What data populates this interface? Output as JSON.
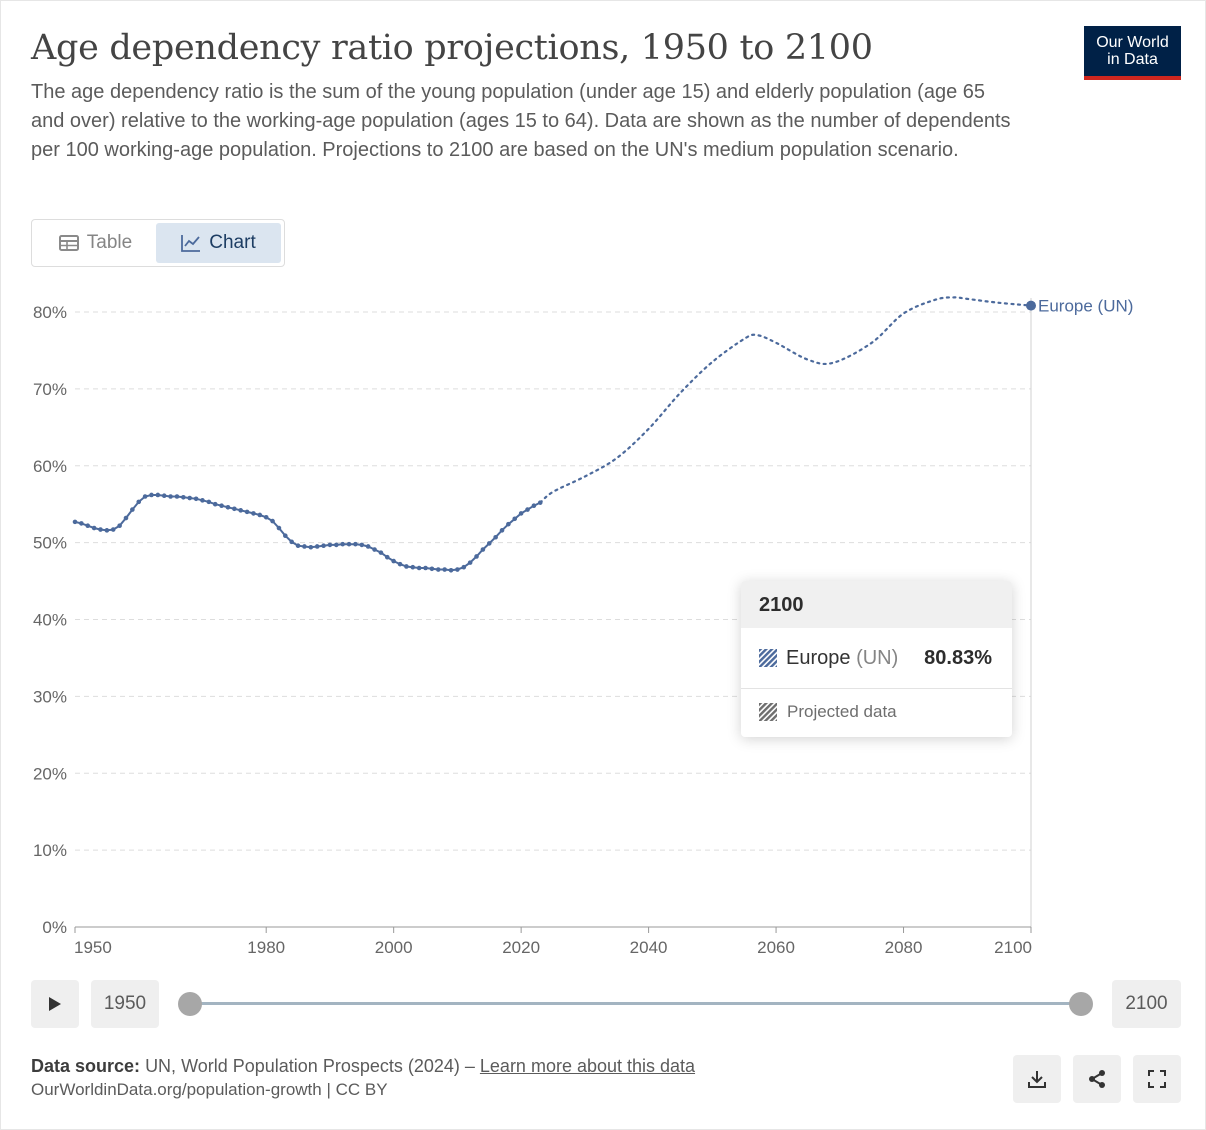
{
  "title": "Age dependency ratio projections, 1950 to 2100",
  "subtitle": "The age dependency ratio is the sum of the young population (under age 15) and elderly population (age 65 and over) relative to the working-age population (ages 15 to 64). Data are shown as the number of dependents per 100 working-age population. Projections to 2100 are based on the UN's medium population scenario.",
  "logo": {
    "line1": "Our World",
    "line2": "in Data"
  },
  "tabs": {
    "table": "Table",
    "chart": "Chart"
  },
  "tooltip": {
    "year": "2100",
    "entity": "Europe",
    "entity_suffix": "(UN)",
    "value": "80.83%",
    "footer": "Projected data"
  },
  "timeline": {
    "start": "1950",
    "end": "2100"
  },
  "source": {
    "label": "Data source:",
    "text": "UN, World Population Prospects (2024) –",
    "link": "Learn more about this data"
  },
  "url": "OurWorldinData.org/population-growth | CC BY",
  "icons": {
    "play": "play-icon",
    "download": "download-icon",
    "share": "share-icon",
    "fullscreen": "fullscreen-icon",
    "table": "table-icon",
    "chart": "line-chart-icon"
  },
  "colors": {
    "series": "#4c6a9c",
    "brand": "#002147",
    "brand_accent": "#ce261e"
  },
  "chart_data": {
    "type": "line",
    "title": "Age dependency ratio projections, 1950 to 2100",
    "ylim": [
      0,
      80
    ],
    "xlim": [
      1950,
      2100
    ],
    "y_ticks": [
      "0%",
      "10%",
      "20%",
      "30%",
      "40%",
      "50%",
      "60%",
      "70%",
      "80%"
    ],
    "x_ticks": [
      "1950",
      "1980",
      "2000",
      "2020",
      "2040",
      "2060",
      "2080",
      "2100"
    ],
    "grid": true,
    "series": [
      {
        "name": "Europe (UN)",
        "historical": {
          "x": [
            1950,
            1951,
            1952,
            1953,
            1954,
            1955,
            1956,
            1957,
            1958,
            1959,
            1960,
            1961,
            1962,
            1963,
            1964,
            1965,
            1966,
            1967,
            1968,
            1969,
            1970,
            1971,
            1972,
            1973,
            1974,
            1975,
            1976,
            1977,
            1978,
            1979,
            1980,
            1981,
            1982,
            1983,
            1984,
            1985,
            1986,
            1987,
            1988,
            1989,
            1990,
            1991,
            1992,
            1993,
            1994,
            1995,
            1996,
            1997,
            1998,
            1999,
            2000,
            2001,
            2002,
            2003,
            2004,
            2005,
            2006,
            2007,
            2008,
            2009,
            2010,
            2011,
            2012,
            2013,
            2014,
            2015,
            2016,
            2017,
            2018,
            2019,
            2020,
            2021,
            2022,
            2023
          ],
          "y": [
            52.7,
            52.5,
            52.2,
            51.9,
            51.7,
            51.6,
            51.7,
            52.2,
            53.2,
            54.3,
            55.3,
            56.0,
            56.2,
            56.2,
            56.1,
            56.0,
            56.0,
            55.9,
            55.8,
            55.7,
            55.5,
            55.3,
            55.0,
            54.8,
            54.6,
            54.4,
            54.2,
            54.0,
            53.8,
            53.6,
            53.3,
            52.8,
            51.9,
            50.9,
            50.1,
            49.6,
            49.5,
            49.4,
            49.5,
            49.6,
            49.7,
            49.7,
            49.8,
            49.8,
            49.8,
            49.7,
            49.5,
            49.1,
            48.7,
            48.1,
            47.6,
            47.2,
            46.9,
            46.8,
            46.7,
            46.7,
            46.6,
            46.5,
            46.5,
            46.4,
            46.5,
            46.8,
            47.4,
            48.2,
            49.1,
            49.9,
            50.7,
            51.6,
            52.4,
            53.1,
            53.8,
            54.3,
            54.8,
            55.2
          ]
        },
        "projected": {
          "x": [
            2023,
            2025,
            2030,
            2035,
            2040,
            2045,
            2050,
            2055,
            2057,
            2060,
            2065,
            2069,
            2075,
            2080,
            2085,
            2088,
            2090,
            2095,
            2100
          ],
          "y": [
            55.2,
            56.6,
            58.6,
            61.0,
            64.8,
            69.5,
            73.5,
            76.5,
            77.0,
            76.0,
            73.8,
            73.4,
            76.0,
            79.8,
            81.6,
            81.9,
            81.7,
            81.2,
            80.83
          ]
        },
        "end_label": "Europe (UN)",
        "highlight": {
          "x": 2100,
          "y": 80.83
        }
      }
    ]
  }
}
